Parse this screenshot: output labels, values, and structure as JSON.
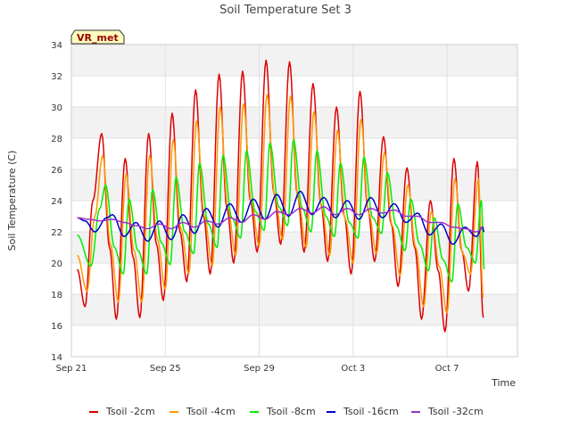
{
  "chart_data": {
    "type": "line",
    "title": "Soil Temperature Set 3",
    "xlabel": "Time",
    "ylabel": "Soil Temperature (C)",
    "ylim": [
      14,
      34
    ],
    "xlim": [
      "2023-09-21",
      "2023-10-10"
    ],
    "yticks": [
      14,
      16,
      18,
      20,
      22,
      24,
      26,
      28,
      30,
      32,
      34
    ],
    "xticks": [
      {
        "label": "Sep 21",
        "date": "2023-09-21"
      },
      {
        "label": "Sep 25",
        "date": "2023-09-25"
      },
      {
        "label": "Sep 29",
        "date": "2023-09-29"
      },
      {
        "label": "Oct 3",
        "date": "2023-10-03"
      },
      {
        "label": "Oct 7",
        "date": "2023-10-07"
      }
    ],
    "grid": true,
    "legend_position": "bottom",
    "annotation": "VR_met",
    "series": [
      {
        "name": "Tsoil -2cm",
        "color": "#dd0000",
        "points": [
          [
            "2023-09-21T06:00",
            19.6
          ],
          [
            "2023-09-21T14:00",
            17.2
          ],
          [
            "2023-09-21T22:00",
            24.0
          ],
          [
            "2023-09-22T07:00",
            28.3
          ],
          [
            "2023-09-22T15:00",
            21.0
          ],
          [
            "2023-09-22T22:00",
            16.4
          ],
          [
            "2023-09-23T07:00",
            26.7
          ],
          [
            "2023-09-23T15:00",
            20.4
          ],
          [
            "2023-09-23T22:00",
            16.5
          ],
          [
            "2023-09-24T07:00",
            28.3
          ],
          [
            "2023-09-24T15:00",
            21.2
          ],
          [
            "2023-09-24T22:00",
            17.6
          ],
          [
            "2023-09-25T07:00",
            29.6
          ],
          [
            "2023-09-25T15:00",
            22.0
          ],
          [
            "2023-09-25T22:00",
            18.8
          ],
          [
            "2023-09-26T07:00",
            31.1
          ],
          [
            "2023-09-26T15:00",
            23.0
          ],
          [
            "2023-09-26T22:00",
            19.3
          ],
          [
            "2023-09-27T07:00",
            32.1
          ],
          [
            "2023-09-27T15:00",
            23.5
          ],
          [
            "2023-09-27T22:00",
            20.0
          ],
          [
            "2023-09-28T07:00",
            32.3
          ],
          [
            "2023-09-28T15:00",
            24.0
          ],
          [
            "2023-09-28T22:00",
            20.7
          ],
          [
            "2023-09-29T07:00",
            33.0
          ],
          [
            "2023-09-29T15:00",
            24.5
          ],
          [
            "2023-09-29T22:00",
            21.2
          ],
          [
            "2023-09-30T07:00",
            32.9
          ],
          [
            "2023-09-30T15:00",
            24.4
          ],
          [
            "2023-09-30T22:00",
            20.7
          ],
          [
            "2023-10-01T07:00",
            31.5
          ],
          [
            "2023-10-01T15:00",
            23.8
          ],
          [
            "2023-10-01T22:00",
            20.1
          ],
          [
            "2023-10-02T07:00",
            30.0
          ],
          [
            "2023-10-02T15:00",
            23.0
          ],
          [
            "2023-10-02T22:00",
            19.3
          ],
          [
            "2023-10-03T07:00",
            31.0
          ],
          [
            "2023-10-03T15:00",
            23.5
          ],
          [
            "2023-10-03T22:00",
            20.1
          ],
          [
            "2023-10-04T07:00",
            28.1
          ],
          [
            "2023-10-04T15:00",
            22.5
          ],
          [
            "2023-10-04T22:00",
            18.5
          ],
          [
            "2023-10-05T07:00",
            26.1
          ],
          [
            "2023-10-05T15:00",
            21.0
          ],
          [
            "2023-10-05T22:00",
            16.4
          ],
          [
            "2023-10-06T07:00",
            24.0
          ],
          [
            "2023-10-06T15:00",
            19.5
          ],
          [
            "2023-10-06T22:00",
            15.6
          ],
          [
            "2023-10-07T07:00",
            26.7
          ],
          [
            "2023-10-07T15:00",
            20.8
          ],
          [
            "2023-10-07T22:00",
            18.2
          ],
          [
            "2023-10-08T07:00",
            26.5
          ],
          [
            "2023-10-08T13:00",
            16.5
          ]
        ]
      },
      {
        "name": "Tsoil -4cm",
        "color": "#ff9900",
        "points": [
          [
            "2023-09-21T06:00",
            20.5
          ],
          [
            "2023-09-21T16:00",
            18.2
          ],
          [
            "2023-09-22T00:00",
            23.0
          ],
          [
            "2023-09-22T08:00",
            26.9
          ],
          [
            "2023-09-22T16:00",
            21.2
          ],
          [
            "2023-09-23T00:00",
            17.5
          ],
          [
            "2023-09-23T08:00",
            25.7
          ],
          [
            "2023-09-23T16:00",
            20.8
          ],
          [
            "2023-09-24T00:00",
            17.5
          ],
          [
            "2023-09-24T08:00",
            26.9
          ],
          [
            "2023-09-24T16:00",
            21.5
          ],
          [
            "2023-09-25T00:00",
            18.3
          ],
          [
            "2023-09-25T08:00",
            27.9
          ],
          [
            "2023-09-25T16:00",
            22.2
          ],
          [
            "2023-09-26T00:00",
            19.3
          ],
          [
            "2023-09-26T08:00",
            29.1
          ],
          [
            "2023-09-26T16:00",
            23.0
          ],
          [
            "2023-09-27T00:00",
            19.8
          ],
          [
            "2023-09-27T08:00",
            30.0
          ],
          [
            "2023-09-27T16:00",
            23.5
          ],
          [
            "2023-09-28T00:00",
            20.5
          ],
          [
            "2023-09-28T08:00",
            30.2
          ],
          [
            "2023-09-28T16:00",
            23.9
          ],
          [
            "2023-09-29T00:00",
            21.1
          ],
          [
            "2023-09-29T08:00",
            30.8
          ],
          [
            "2023-09-29T16:00",
            24.2
          ],
          [
            "2023-09-30T00:00",
            21.5
          ],
          [
            "2023-09-30T08:00",
            30.7
          ],
          [
            "2023-09-30T16:00",
            24.1
          ],
          [
            "2023-10-01T00:00",
            21.0
          ],
          [
            "2023-10-01T08:00",
            29.7
          ],
          [
            "2023-10-01T16:00",
            23.5
          ],
          [
            "2023-10-02T00:00",
            20.5
          ],
          [
            "2023-10-02T08:00",
            28.5
          ],
          [
            "2023-10-02T16:00",
            22.8
          ],
          [
            "2023-10-03T00:00",
            20.0
          ],
          [
            "2023-10-03T08:00",
            29.2
          ],
          [
            "2023-10-03T16:00",
            23.2
          ],
          [
            "2023-10-04T00:00",
            20.6
          ],
          [
            "2023-10-04T08:00",
            27.1
          ],
          [
            "2023-10-04T16:00",
            22.4
          ],
          [
            "2023-10-05T00:00",
            19.2
          ],
          [
            "2023-10-05T08:00",
            25.0
          ],
          [
            "2023-10-05T16:00",
            21.0
          ],
          [
            "2023-10-06T00:00",
            17.2
          ],
          [
            "2023-10-06T08:00",
            23.3
          ],
          [
            "2023-10-06T16:00",
            19.8
          ],
          [
            "2023-10-07T00:00",
            16.8
          ],
          [
            "2023-10-07T08:00",
            25.4
          ],
          [
            "2023-10-07T16:00",
            20.6
          ],
          [
            "2023-10-08T00:00",
            19.3
          ],
          [
            "2023-10-08T08:00",
            25.4
          ],
          [
            "2023-10-08T13:00",
            17.8
          ]
        ]
      },
      {
        "name": "Tsoil -8cm",
        "color": "#00ee00",
        "points": [
          [
            "2023-09-21T06:00",
            21.8
          ],
          [
            "2023-09-21T20:00",
            19.8
          ],
          [
            "2023-09-22T05:00",
            23.5
          ],
          [
            "2023-09-22T11:00",
            25.0
          ],
          [
            "2023-09-22T20:00",
            21.0
          ],
          [
            "2023-09-23T05:00",
            19.3
          ],
          [
            "2023-09-23T11:00",
            24.1
          ],
          [
            "2023-09-23T20:00",
            20.8
          ],
          [
            "2023-09-24T05:00",
            19.3
          ],
          [
            "2023-09-24T11:00",
            24.7
          ],
          [
            "2023-09-24T20:00",
            21.3
          ],
          [
            "2023-09-25T05:00",
            19.9
          ],
          [
            "2023-09-25T11:00",
            25.5
          ],
          [
            "2023-09-25T20:00",
            22.0
          ],
          [
            "2023-09-26T05:00",
            20.6
          ],
          [
            "2023-09-26T11:00",
            26.4
          ],
          [
            "2023-09-26T20:00",
            22.5
          ],
          [
            "2023-09-27T05:00",
            21.0
          ],
          [
            "2023-09-27T11:00",
            26.9
          ],
          [
            "2023-09-27T20:00",
            22.9
          ],
          [
            "2023-09-28T05:00",
            21.6
          ],
          [
            "2023-09-28T11:00",
            27.2
          ],
          [
            "2023-09-28T20:00",
            23.3
          ],
          [
            "2023-09-29T05:00",
            22.1
          ],
          [
            "2023-09-29T11:00",
            27.7
          ],
          [
            "2023-09-29T20:00",
            23.6
          ],
          [
            "2023-09-30T05:00",
            22.4
          ],
          [
            "2023-09-30T11:00",
            27.9
          ],
          [
            "2023-09-30T20:00",
            23.5
          ],
          [
            "2023-10-01T05:00",
            22.0
          ],
          [
            "2023-10-01T11:00",
            27.2
          ],
          [
            "2023-10-01T20:00",
            23.0
          ],
          [
            "2023-10-02T05:00",
            21.7
          ],
          [
            "2023-10-02T11:00",
            26.4
          ],
          [
            "2023-10-02T20:00",
            22.6
          ],
          [
            "2023-10-03T05:00",
            21.6
          ],
          [
            "2023-10-03T11:00",
            26.8
          ],
          [
            "2023-10-03T20:00",
            22.9
          ],
          [
            "2023-10-04T05:00",
            21.9
          ],
          [
            "2023-10-04T11:00",
            25.8
          ],
          [
            "2023-10-04T20:00",
            22.4
          ],
          [
            "2023-10-05T05:00",
            20.8
          ],
          [
            "2023-10-05T11:00",
            24.1
          ],
          [
            "2023-10-05T20:00",
            21.2
          ],
          [
            "2023-10-06T05:00",
            19.5
          ],
          [
            "2023-10-06T11:00",
            22.9
          ],
          [
            "2023-10-06T20:00",
            20.2
          ],
          [
            "2023-10-07T05:00",
            18.8
          ],
          [
            "2023-10-07T11:00",
            23.8
          ],
          [
            "2023-10-07T20:00",
            21.0
          ],
          [
            "2023-10-08T05:00",
            20.0
          ],
          [
            "2023-10-08T11:00",
            24.0
          ],
          [
            "2023-10-08T14:00",
            19.6
          ]
        ]
      },
      {
        "name": "Tsoil -16cm",
        "color": "#0000cc",
        "points": [
          [
            "2023-09-21T06:00",
            22.9
          ],
          [
            "2023-09-21T14:00",
            22.7
          ],
          [
            "2023-09-22T00:00",
            22.0
          ],
          [
            "2023-09-22T12:00",
            22.9
          ],
          [
            "2023-09-22T18:00",
            23.1
          ],
          [
            "2023-09-23T06:00",
            21.7
          ],
          [
            "2023-09-23T18:00",
            22.6
          ],
          [
            "2023-09-24T06:00",
            21.4
          ],
          [
            "2023-09-24T18:00",
            22.7
          ],
          [
            "2023-09-25T06:00",
            21.5
          ],
          [
            "2023-09-25T18:00",
            23.1
          ],
          [
            "2023-09-26T06:00",
            21.9
          ],
          [
            "2023-09-26T18:00",
            23.5
          ],
          [
            "2023-09-27T06:00",
            22.3
          ],
          [
            "2023-09-27T18:00",
            23.8
          ],
          [
            "2023-09-28T06:00",
            22.6
          ],
          [
            "2023-09-28T18:00",
            24.1
          ],
          [
            "2023-09-29T06:00",
            22.8
          ],
          [
            "2023-09-29T18:00",
            24.4
          ],
          [
            "2023-09-30T06:00",
            23.0
          ],
          [
            "2023-09-30T18:00",
            24.6
          ],
          [
            "2023-10-01T06:00",
            23.1
          ],
          [
            "2023-10-01T18:00",
            24.2
          ],
          [
            "2023-10-02T06:00",
            22.9
          ],
          [
            "2023-10-02T18:00",
            24.0
          ],
          [
            "2023-10-03T06:00",
            22.8
          ],
          [
            "2023-10-03T18:00",
            24.2
          ],
          [
            "2023-10-04T06:00",
            22.9
          ],
          [
            "2023-10-04T18:00",
            23.8
          ],
          [
            "2023-10-05T06:00",
            22.6
          ],
          [
            "2023-10-05T18:00",
            23.2
          ],
          [
            "2023-10-06T06:00",
            21.8
          ],
          [
            "2023-10-06T18:00",
            22.5
          ],
          [
            "2023-10-07T06:00",
            21.2
          ],
          [
            "2023-10-07T18:00",
            22.3
          ],
          [
            "2023-10-08T06:00",
            21.7
          ],
          [
            "2023-10-08T12:00",
            22.3
          ],
          [
            "2023-10-08T14:00",
            22.0
          ]
        ]
      },
      {
        "name": "Tsoil -32cm",
        "color": "#9933cc",
        "points": [
          [
            "2023-09-21T06:00",
            22.9
          ],
          [
            "2023-09-21T18:00",
            22.8
          ],
          [
            "2023-09-22T06:00",
            22.7
          ],
          [
            "2023-09-22T18:00",
            22.8
          ],
          [
            "2023-09-23T06:00",
            22.6
          ],
          [
            "2023-09-23T18:00",
            22.4
          ],
          [
            "2023-09-24T06:00",
            22.2
          ],
          [
            "2023-09-24T18:00",
            22.5
          ],
          [
            "2023-09-25T06:00",
            22.2
          ],
          [
            "2023-09-25T18:00",
            22.6
          ],
          [
            "2023-09-26T06:00",
            22.3
          ],
          [
            "2023-09-26T18:00",
            22.7
          ],
          [
            "2023-09-27T06:00",
            22.5
          ],
          [
            "2023-09-27T18:00",
            22.9
          ],
          [
            "2023-09-28T06:00",
            22.6
          ],
          [
            "2023-09-28T18:00",
            23.1
          ],
          [
            "2023-09-29T06:00",
            22.8
          ],
          [
            "2023-09-29T18:00",
            23.3
          ],
          [
            "2023-09-30T06:00",
            23.1
          ],
          [
            "2023-09-30T18:00",
            23.5
          ],
          [
            "2023-10-01T06:00",
            23.2
          ],
          [
            "2023-10-01T18:00",
            23.6
          ],
          [
            "2023-10-02T06:00",
            23.1
          ],
          [
            "2023-10-02T18:00",
            23.5
          ],
          [
            "2023-10-03T06:00",
            23.1
          ],
          [
            "2023-10-03T18:00",
            23.5
          ],
          [
            "2023-10-04T06:00",
            23.2
          ],
          [
            "2023-10-04T18:00",
            23.4
          ],
          [
            "2023-10-05T06:00",
            23.0
          ],
          [
            "2023-10-05T18:00",
            23.0
          ],
          [
            "2023-10-06T06:00",
            22.6
          ],
          [
            "2023-10-06T18:00",
            22.6
          ],
          [
            "2023-10-07T06:00",
            22.3
          ],
          [
            "2023-10-07T18:00",
            22.2
          ],
          [
            "2023-10-08T06:00",
            22.0
          ],
          [
            "2023-10-08T14:00",
            22.3
          ]
        ]
      }
    ]
  }
}
